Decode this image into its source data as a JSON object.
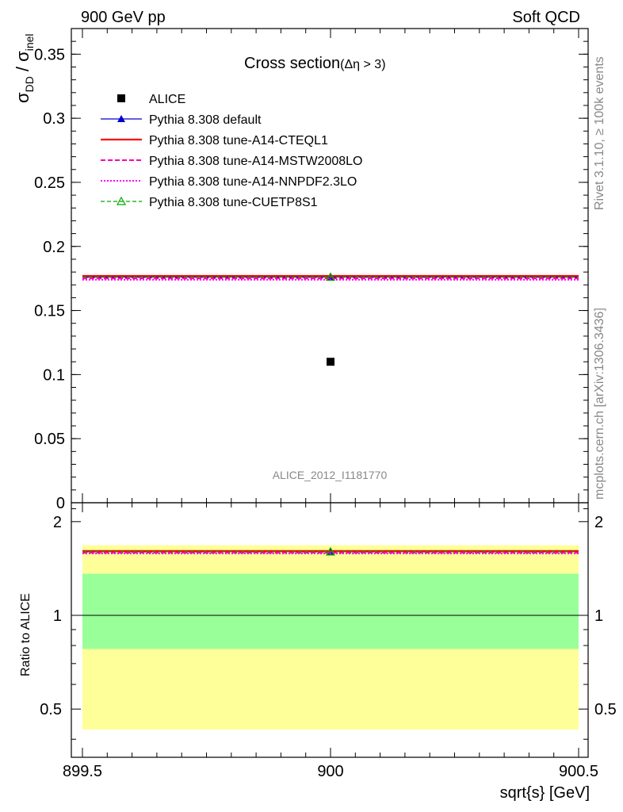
{
  "header": {
    "left": "900 GeV pp",
    "right": "Soft QCD"
  },
  "side_labels": {
    "rivet": "Rivet 3.1.10, ≥ 100k events",
    "mcplots": "mcplots.cern.ch [arXiv:1306.3436]"
  },
  "chart_data": [
    {
      "type": "scatter",
      "panel": "main",
      "title": "Cross section",
      "title_suffix": "(Δη > 3)",
      "ylabel_main": "σ",
      "ylabel_sub1": "DD",
      "ylabel_sep": " / σ",
      "ylabel_sub2": "inel",
      "analysis_tag": "ALICE_2012_I1181770",
      "xlim": [
        899.5,
        900.5
      ],
      "ylim": [
        0,
        0.37
      ],
      "yticks": [
        0,
        0.05,
        0.1,
        0.15,
        0.2,
        0.25,
        0.3,
        0.35
      ],
      "ytick_labels": [
        "0",
        "0.05",
        "0.1",
        "0.15",
        "0.2",
        "0.25",
        "0.3",
        "0.35"
      ],
      "legend_position": "top-left",
      "series": [
        {
          "name": "ALICE",
          "kind": "data",
          "x": [
            900
          ],
          "y": [
            0.11
          ],
          "color": "#000000",
          "marker": "square"
        },
        {
          "name": "Pythia 8.308 default",
          "kind": "mc",
          "x": [
            900
          ],
          "y": [
            0.176
          ],
          "color": "#0000cc",
          "dash": "solid",
          "width": 1.2,
          "marker": "triangle"
        },
        {
          "name": "Pythia 8.308 tune-A14-CTEQL1",
          "kind": "mc",
          "x": [
            900
          ],
          "y": [
            0.177
          ],
          "color": "#ff0000",
          "dash": "solid",
          "width": 2.2,
          "marker": "none"
        },
        {
          "name": "Pythia 8.308 tune-A14-MSTW2008LO",
          "kind": "mc",
          "x": [
            900
          ],
          "y": [
            0.175
          ],
          "color": "#ff00aa",
          "dash": "6,3",
          "width": 2,
          "marker": "none"
        },
        {
          "name": "Pythia 8.308 tune-A14-NNPDF2.3LO",
          "kind": "mc",
          "x": [
            900
          ],
          "y": [
            0.174
          ],
          "color": "#ff00ff",
          "dash": "2,2",
          "width": 2,
          "marker": "none"
        },
        {
          "name": "Pythia 8.308 tune-CUETP8S1",
          "kind": "mc",
          "x": [
            900
          ],
          "y": [
            0.176
          ],
          "color": "#00aa00",
          "dash": "5,3",
          "width": 1.2,
          "marker": "triangle-open"
        }
      ]
    },
    {
      "type": "line",
      "panel": "ratio",
      "ylabel": "Ratio to ALICE",
      "xlabel": "sqrt{s} [GeV]",
      "xlim": [
        899.5,
        900.5
      ],
      "ylim": [
        0.35,
        2.3
      ],
      "xticks": [
        899.5,
        900,
        900.5
      ],
      "xtick_labels": [
        "899.5",
        "900",
        "900.5"
      ],
      "yticks": [
        0.5,
        1,
        2
      ],
      "ytick_labels": [
        "0.5",
        "1",
        "2"
      ],
      "bands": [
        {
          "name": "total uncertainty",
          "y_low": 0.43,
          "y_high": 1.68,
          "color": "#ffff99"
        },
        {
          "name": "stat uncertainty",
          "y_low": 0.78,
          "y_high": 1.36,
          "color": "#99ff99"
        }
      ],
      "reference_line": 1,
      "series": [
        {
          "name": "Pythia 8.308 default",
          "x": [
            900
          ],
          "y": [
            1.6
          ],
          "color": "#0000cc",
          "dash": "solid",
          "width": 1.2,
          "marker": "triangle"
        },
        {
          "name": "Pythia 8.308 tune-A14-CTEQL1",
          "x": [
            900
          ],
          "y": [
            1.61
          ],
          "color": "#ff0000",
          "dash": "solid",
          "width": 2.2,
          "marker": "none"
        },
        {
          "name": "Pythia 8.308 tune-A14-MSTW2008LO",
          "x": [
            900
          ],
          "y": [
            1.59
          ],
          "color": "#ff00aa",
          "dash": "6,3",
          "width": 2,
          "marker": "none"
        },
        {
          "name": "Pythia 8.308 tune-A14-NNPDF2.3LO",
          "x": [
            900
          ],
          "y": [
            1.58
          ],
          "color": "#ff00ff",
          "dash": "2,2",
          "width": 2,
          "marker": "none"
        },
        {
          "name": "Pythia 8.308 tune-CUETP8S1",
          "x": [
            900
          ],
          "y": [
            1.6
          ],
          "color": "#00aa00",
          "dash": "5,3",
          "width": 1.2,
          "marker": "triangle-open"
        }
      ]
    }
  ]
}
